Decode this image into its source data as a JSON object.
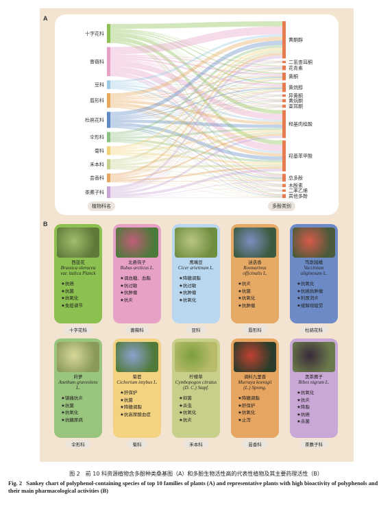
{
  "panel_a_label": "A",
  "panel_b_label": "B",
  "colors": {
    "background_panel": "#f3e4d2",
    "source_nodes": [
      "#8cc050",
      "#e7a1c7",
      "#9ccbe6",
      "#e8a85c",
      "#5d8ac4",
      "#8cc080",
      "#f1d27a",
      "#c7cf8a",
      "#e6a45c",
      "#c7a5d5"
    ],
    "target_node": "#e87a50",
    "cards": [
      "#8cc050",
      "#e7a1c7",
      "#b9d7ee",
      "#e7aa66",
      "#6c8bc6",
      "#99c57e",
      "#f3d281",
      "#c7cf8a",
      "#e6a560",
      "#c9a7d6"
    ]
  },
  "chart_data": {
    "type": "sankey",
    "source_axis_label": "植物科名",
    "target_axis_label": "多酚类别",
    "sources": [
      "十字花科",
      "蔷薇科",
      "豆科",
      "唇形科",
      "杜鹃花科",
      "伞形科",
      "菊科",
      "禾本科",
      "芸香科",
      "茶藨子科"
    ],
    "source_weights": [
      13,
      20,
      6,
      10,
      11,
      7,
      6,
      7,
      6,
      8
    ],
    "targets": [
      "黄酮醇",
      "二氢查耳酮",
      "花青素",
      "黄酮",
      "黄烷醇",
      "异黄酮",
      "黄烷酮",
      "查耳酮",
      "羟基肉桂酸",
      "羟基苯甲酸",
      "总多酚",
      "木酚素",
      "二苯乙烯",
      "其他多酚"
    ],
    "target_weights": [
      24,
      1.5,
      3,
      5,
      6,
      1.5,
      2,
      2,
      18,
      20,
      5,
      2,
      1.5,
      2.5
    ]
  },
  "cards": [
    {
      "cn": "西蓝花",
      "lat": [
        "Brassica oleracea",
        "var. italica Planck"
      ],
      "acts": [
        "★抗癌",
        "★抗菌",
        "★抗氧化",
        "★免疫调节"
      ],
      "family": "十字花科",
      "photo": "broccoli-photo"
    },
    {
      "cn": "北悬钩子",
      "lat": [
        "Rubus arcticus L."
      ],
      "acts": [
        "★调血糖、血脂",
        "★抗过敏",
        "★抗肿瘤",
        "★抗炎"
      ],
      "family": "蔷薇科",
      "photo": "raspberry-flower-photo"
    },
    {
      "cn": "鹰嘴豆",
      "lat": [
        "Cicer arietinum L."
      ],
      "acts": [
        "★降糖调脂",
        "★抗过敏",
        "★抗肿瘤",
        "★抗氧化"
      ],
      "family": "豆科",
      "photo": "chickpea-plant-photo"
    },
    {
      "cn": "迷迭香",
      "lat": [
        "Rosmarinus",
        "officinalis L."
      ],
      "acts": [
        "★抗炎",
        "★抗菌",
        "★抗氧化",
        "★抗肿瘤"
      ],
      "family": "唇形科",
      "photo": "rosemary-photo"
    },
    {
      "cn": "笃斯越橘",
      "lat": [
        "Vaccinium",
        "uliginosum L."
      ],
      "acts": [
        "★抗氧化",
        "★抗癌抗肿瘤",
        "★利尿消炎",
        "★缓解视疲劳"
      ],
      "family": "杜鹃花科",
      "photo": "bilberry-photo"
    },
    {
      "cn": "莳萝",
      "lat": [
        "Anethum graveolens L."
      ],
      "acts": [
        "★镇痛抗炎",
        "★抗菌",
        "★抗氧化",
        "★抗糖尿病"
      ],
      "family": "伞形科",
      "photo": "dill-photo"
    },
    {
      "cn": "菊苣",
      "lat": [
        "Cichorium intybus L."
      ],
      "acts": [
        "★肝保护",
        "★抗菌",
        "★降糖调脂",
        "★抗高尿酸血症"
      ],
      "family": "菊科",
      "photo": "chicory-photo"
    },
    {
      "cn": "柠檬草",
      "lat": [
        "Cymbopogon citratus",
        "(D. C.) Stapf."
      ],
      "acts": [
        "★抑菌",
        "★杀虫",
        "★抗氧化",
        "★抗炎"
      ],
      "family": "禾本科",
      "photo": "lemongrass-photo"
    },
    {
      "cn": "调料九里香",
      "lat": [
        "Murraya koenigii",
        "(L.) Spreng."
      ],
      "acts": [
        "★降糖调脂",
        "★肝保护",
        "★抗氧化",
        "★止泻"
      ],
      "family": "芸香科",
      "photo": "curry-leaf-photo"
    },
    {
      "cn": "黑茶藨子",
      "lat": [
        "Ribes nigrum L."
      ],
      "acts": [
        "★抗氧化",
        "★抗炎",
        "★降脂",
        "★抗癌",
        "★杀菌"
      ],
      "family": "茶藨子科",
      "photo": "blackcurrant-photo"
    }
  ],
  "caption": {
    "cn": "图 2　前 10 科资源植物含多酚种类桑基图（A）和多酚生物活性高的代表性植物及其主要药理活性（B）",
    "en_label": "Fig. 2",
    "en": "Sankey chart of polyphenol-containing species of  top 10 families of plants (A) and representative plants with high bioactivity of polyphenols and their main pharmacological activities (B)"
  }
}
